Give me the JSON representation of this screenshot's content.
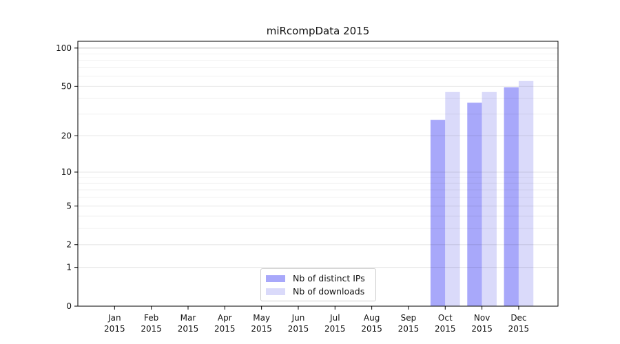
{
  "chart_data": {
    "type": "bar",
    "title": "miRcompData 2015",
    "categories": [
      "Jan",
      "Feb",
      "Mar",
      "Apr",
      "May",
      "Jun",
      "Jul",
      "Aug",
      "Sep",
      "Oct",
      "Nov",
      "Dec"
    ],
    "category_sublabel": "2015",
    "series": [
      {
        "name": "Nb of distinct IPs",
        "color": "#a8a8fa",
        "values": [
          0,
          0,
          0,
          0,
          0,
          0,
          0,
          0,
          0,
          27,
          37,
          49
        ]
      },
      {
        "name": "Nb of downloads",
        "color": "#dadafa",
        "values": [
          0,
          0,
          0,
          0,
          0,
          0,
          0,
          0,
          0,
          45,
          45,
          55
        ]
      }
    ],
    "y_scale": "log1p",
    "y_ticks": [
      0,
      1,
      2,
      5,
      10,
      20,
      50,
      100
    ],
    "y_minor_ticks": [
      3,
      4,
      6,
      7,
      8,
      9,
      30,
      40,
      60,
      70,
      80,
      90
    ],
    "y_max": 113,
    "emphasized_gridline": 100,
    "grid": true,
    "legend_position": "bottom-center",
    "xlabel": "",
    "ylabel": ""
  }
}
